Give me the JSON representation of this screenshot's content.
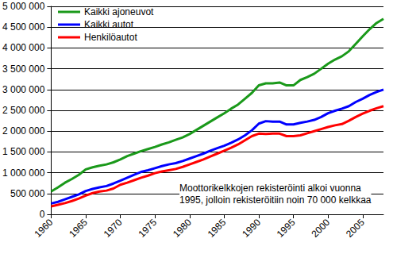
{
  "chart_data": {
    "type": "line",
    "x": [
      1960,
      1961,
      1962,
      1963,
      1964,
      1965,
      1966,
      1967,
      1968,
      1969,
      1970,
      1971,
      1972,
      1973,
      1974,
      1975,
      1976,
      1977,
      1978,
      1979,
      1980,
      1981,
      1982,
      1983,
      1984,
      1985,
      1986,
      1987,
      1988,
      1989,
      1990,
      1991,
      1992,
      1993,
      1994,
      1995,
      1996,
      1997,
      1998,
      1999,
      2000,
      2001,
      2002,
      2003,
      2004,
      2005,
      2006,
      2007,
      2008
    ],
    "series": [
      {
        "name": "Kaikki ajoneuvot",
        "color": "#1a991a",
        "values": [
          550000,
          650000,
          760000,
          850000,
          950000,
          1080000,
          1130000,
          1170000,
          1200000,
          1250000,
          1320000,
          1400000,
          1460000,
          1520000,
          1570000,
          1620000,
          1680000,
          1730000,
          1790000,
          1850000,
          1930000,
          2030000,
          2130000,
          2230000,
          2330000,
          2430000,
          2540000,
          2640000,
          2780000,
          2920000,
          3100000,
          3150000,
          3150000,
          3170000,
          3100000,
          3100000,
          3230000,
          3300000,
          3380000,
          3500000,
          3620000,
          3720000,
          3800000,
          3920000,
          4100000,
          4280000,
          4450000,
          4600000,
          4700000
        ]
      },
      {
        "name": "Kaikki autot",
        "color": "#0000ff",
        "values": [
          260000,
          300000,
          360000,
          420000,
          480000,
          560000,
          610000,
          650000,
          680000,
          740000,
          810000,
          880000,
          950000,
          1020000,
          1060000,
          1110000,
          1160000,
          1200000,
          1230000,
          1280000,
          1340000,
          1400000,
          1460000,
          1530000,
          1590000,
          1650000,
          1720000,
          1800000,
          1900000,
          2020000,
          2180000,
          2240000,
          2230000,
          2230000,
          2160000,
          2160000,
          2200000,
          2230000,
          2270000,
          2340000,
          2430000,
          2490000,
          2540000,
          2600000,
          2700000,
          2780000,
          2870000,
          2940000,
          3000000
        ]
      },
      {
        "name": "Henkilöautot",
        "color": "#ff0000",
        "values": [
          190000,
          230000,
          270000,
          320000,
          380000,
          450000,
          510000,
          550000,
          570000,
          620000,
          710000,
          760000,
          820000,
          880000,
          930000,
          990000,
          1030000,
          1060000,
          1090000,
          1140000,
          1200000,
          1260000,
          1320000,
          1390000,
          1460000,
          1530000,
          1600000,
          1680000,
          1780000,
          1880000,
          1940000,
          1930000,
          1940000,
          1940000,
          1880000,
          1880000,
          1900000,
          1950000,
          2000000,
          2050000,
          2100000,
          2140000,
          2170000,
          2250000,
          2340000,
          2420000,
          2490000,
          2550000,
          2600000
        ]
      }
    ],
    "xlim": [
      1960,
      2008
    ],
    "xticks": [
      1960,
      1965,
      1970,
      1975,
      1980,
      1985,
      1990,
      1995,
      2000,
      2005
    ],
    "ylim": [
      0,
      5000000
    ],
    "yticks": [
      0,
      {
        "value": 500000,
        "label": "500 000"
      },
      {
        "value": 1000000,
        "label": "1 000 000"
      },
      {
        "value": 1500000,
        "label": "1 500 000"
      },
      {
        "value": 2000000,
        "label": "2 000 000"
      },
      {
        "value": 2500000,
        "label": "2 500 000"
      },
      {
        "value": 3000000,
        "label": "3 000 000"
      },
      {
        "value": 3500000,
        "label": "3 500 000"
      },
      {
        "value": 4000000,
        "label": "4 000 000"
      },
      {
        "value": 4500000,
        "label": "4 500 000"
      },
      {
        "value": 5000000,
        "label": "5 000 000"
      }
    ],
    "annotation": "Moottorikelkkojen rekisteröinti alkoi vuonna\n1995, jolloin rekisteröitiin noin 70 000 kelkkaa",
    "grid": true,
    "legend": "upper left"
  }
}
